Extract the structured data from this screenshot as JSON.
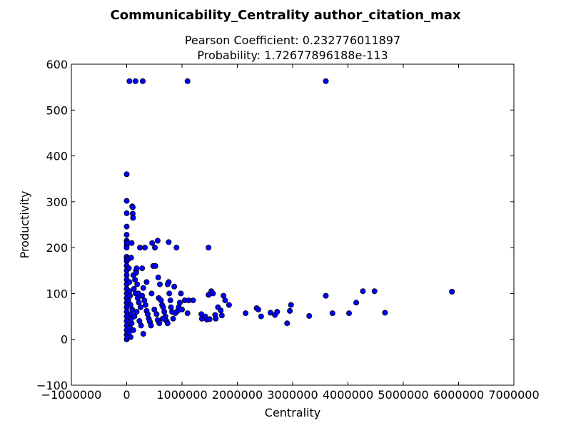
{
  "chart_data": {
    "type": "scatter",
    "suptitle": "Communicability_Centrality author_citation_max",
    "title_line1": "Pearson Coefficient: 0.232776011897",
    "title_line2": "Probability: 1.72677896188e-113",
    "xlabel": "Centrality",
    "ylabel": "Productivity",
    "xlim": [
      -1000000,
      7000000
    ],
    "ylim": [
      -100,
      600
    ],
    "xticks": [
      -1000000,
      0,
      1000000,
      2000000,
      3000000,
      4000000,
      5000000,
      6000000,
      7000000
    ],
    "xtick_labels": [
      "−1000000",
      "0",
      "1000000",
      "2000000",
      "3000000",
      "4000000",
      "5000000",
      "6000000",
      "7000000"
    ],
    "yticks": [
      -100,
      0,
      100,
      200,
      300,
      400,
      500,
      600
    ],
    "ytick_labels": [
      "−100",
      "0",
      "100",
      "200",
      "300",
      "400",
      "500",
      "600"
    ],
    "grid": false,
    "marker_color": "#0000ff",
    "marker_edge_color": "#000000",
    "points": [
      [
        50000,
        563
      ],
      [
        160000,
        563
      ],
      [
        290000,
        563
      ],
      [
        1100000,
        563
      ],
      [
        3600000,
        563
      ],
      [
        0,
        360
      ],
      [
        0,
        302
      ],
      [
        0,
        275
      ],
      [
        0,
        246
      ],
      [
        0,
        228
      ],
      [
        0,
        215
      ],
      [
        0,
        212
      ],
      [
        0,
        205
      ],
      [
        0,
        200
      ],
      [
        0,
        180
      ],
      [
        0,
        176
      ],
      [
        0,
        170
      ],
      [
        0,
        160
      ],
      [
        0,
        150
      ],
      [
        0,
        140
      ],
      [
        0,
        130
      ],
      [
        0,
        120
      ],
      [
        0,
        110
      ],
      [
        0,
        100
      ],
      [
        0,
        90
      ],
      [
        0,
        80
      ],
      [
        0,
        70
      ],
      [
        0,
        60
      ],
      [
        0,
        50
      ],
      [
        0,
        40
      ],
      [
        0,
        30
      ],
      [
        0,
        20
      ],
      [
        0,
        10
      ],
      [
        0,
        0
      ],
      [
        20000,
        210
      ],
      [
        30000,
        175
      ],
      [
        40000,
        155
      ],
      [
        50000,
        125
      ],
      [
        60000,
        95
      ],
      [
        70000,
        75
      ],
      [
        80000,
        55
      ],
      [
        90000,
        35
      ],
      [
        20000,
        5
      ],
      [
        40000,
        15
      ],
      [
        60000,
        25
      ],
      [
        80000,
        45
      ],
      [
        100000,
        65
      ],
      [
        30000,
        85
      ],
      [
        50000,
        105
      ],
      [
        70000,
        5
      ],
      [
        100000,
        290
      ],
      [
        110000,
        288
      ],
      [
        110000,
        274
      ],
      [
        115000,
        265
      ],
      [
        90000,
        210
      ],
      [
        80000,
        178
      ],
      [
        120000,
        140
      ],
      [
        150000,
        130
      ],
      [
        170000,
        150
      ],
      [
        180000,
        155
      ],
      [
        170000,
        145
      ],
      [
        190000,
        120
      ],
      [
        130000,
        110
      ],
      [
        160000,
        100
      ],
      [
        200000,
        90
      ],
      [
        220000,
        80
      ],
      [
        250000,
        70
      ],
      [
        180000,
        60
      ],
      [
        140000,
        50
      ],
      [
        230000,
        40
      ],
      [
        260000,
        30
      ],
      [
        120000,
        20
      ],
      [
        300000,
        12
      ],
      [
        210000,
        100
      ],
      [
        240000,
        200
      ],
      [
        280000,
        155
      ],
      [
        330000,
        200
      ],
      [
        360000,
        125
      ],
      [
        300000,
        112
      ],
      [
        280000,
        95
      ],
      [
        320000,
        85
      ],
      [
        340000,
        75
      ],
      [
        360000,
        62
      ],
      [
        380000,
        55
      ],
      [
        400000,
        45
      ],
      [
        420000,
        38
      ],
      [
        440000,
        30
      ],
      [
        460000,
        210
      ],
      [
        480000,
        160
      ],
      [
        520000,
        160
      ],
      [
        510000,
        200
      ],
      [
        560000,
        215
      ],
      [
        570000,
        135
      ],
      [
        600000,
        120
      ],
      [
        580000,
        90
      ],
      [
        620000,
        85
      ],
      [
        640000,
        75
      ],
      [
        660000,
        70
      ],
      [
        680000,
        60
      ],
      [
        700000,
        50
      ],
      [
        720000,
        40
      ],
      [
        740000,
        35
      ],
      [
        450000,
        100
      ],
      [
        500000,
        65
      ],
      [
        540000,
        55
      ],
      [
        560000,
        42
      ],
      [
        590000,
        35
      ],
      [
        650000,
        45
      ],
      [
        760000,
        212
      ],
      [
        760000,
        125
      ],
      [
        740000,
        120
      ],
      [
        770000,
        100
      ],
      [
        790000,
        85
      ],
      [
        800000,
        70
      ],
      [
        820000,
        60
      ],
      [
        840000,
        45
      ],
      [
        860000,
        115
      ],
      [
        880000,
        57
      ],
      [
        900000,
        200
      ],
      [
        920000,
        62
      ],
      [
        940000,
        70
      ],
      [
        960000,
        80
      ],
      [
        980000,
        100
      ],
      [
        1000000,
        65
      ],
      [
        1050000,
        85
      ],
      [
        1100000,
        57
      ],
      [
        1120000,
        85
      ],
      [
        1200000,
        85
      ],
      [
        1350000,
        55
      ],
      [
        1360000,
        45
      ],
      [
        1420000,
        50
      ],
      [
        1450000,
        43
      ],
      [
        1500000,
        44
      ],
      [
        1480000,
        200
      ],
      [
        1480000,
        97
      ],
      [
        1530000,
        105
      ],
      [
        1560000,
        100
      ],
      [
        1600000,
        53
      ],
      [
        1610000,
        45
      ],
      [
        1650000,
        70
      ],
      [
        1700000,
        63
      ],
      [
        1720000,
        52
      ],
      [
        1750000,
        95
      ],
      [
        1780000,
        85
      ],
      [
        1850000,
        75
      ],
      [
        2150000,
        57
      ],
      [
        2350000,
        68
      ],
      [
        2380000,
        65
      ],
      [
        2430000,
        50
      ],
      [
        2600000,
        58
      ],
      [
        2680000,
        53
      ],
      [
        2720000,
        60
      ],
      [
        2900000,
        35
      ],
      [
        2950000,
        62
      ],
      [
        2970000,
        75
      ],
      [
        3300000,
        51
      ],
      [
        3600000,
        95
      ],
      [
        3720000,
        57
      ],
      [
        4020000,
        57
      ],
      [
        4150000,
        80
      ],
      [
        4270000,
        105
      ],
      [
        4480000,
        105
      ],
      [
        4670000,
        58
      ],
      [
        5880000,
        104
      ]
    ]
  }
}
